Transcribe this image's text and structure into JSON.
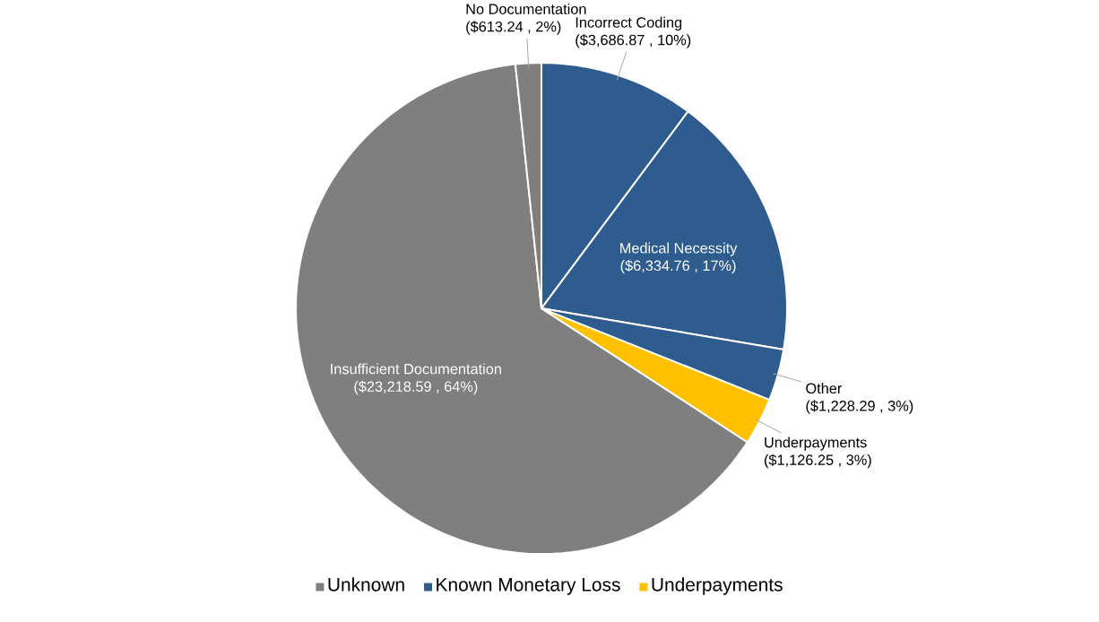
{
  "chart_data": {
    "type": "pie",
    "categories": [
      "Incorrect Coding",
      "Medical Necessity",
      "Other",
      "Underpayments",
      "Insufficient Documentation",
      "No Documentation"
    ],
    "values": [
      3686.87,
      6334.76,
      1228.29,
      1126.25,
      23218.59,
      613.24
    ],
    "colors": [
      "#2e5c8e",
      "#2e5c8e",
      "#2e5c8e",
      "#ffc000",
      "#7f7f7f",
      "#7f7f7f"
    ],
    "value_labels": [
      "($3,686.87 , 10%)",
      "($6,334.76 , 17%)",
      "($1,228.29 , 3%)",
      "($1,126.25 , 3%)",
      "($23,218.59 , 64%)",
      "($613.24 , 2%)"
    ],
    "annotations": [
      "Unknown",
      "Known Monetary Loss",
      "Underpayments"
    ]
  }
}
